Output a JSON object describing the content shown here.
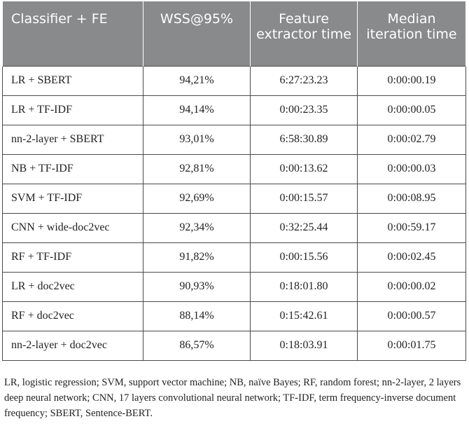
{
  "table": {
    "headers": [
      "Classifier + FE",
      "WSS@95%",
      "Feature extractor time",
      "Median iteration time"
    ],
    "rows": [
      [
        "LR + SBERT",
        "94,21%",
        "6:27:23.23",
        "0:00:00.19"
      ],
      [
        "LR + TF-IDF",
        "94,14%",
        "0:00:23.35",
        "0:00:00.05"
      ],
      [
        "nn-2-layer + SBERT",
        "93,01%",
        "6:58:30.89",
        "0:00:02.79"
      ],
      [
        "NB + TF-IDF",
        "92,81%",
        "0:00:13.62",
        "0:00:00.03"
      ],
      [
        "SVM + TF-IDF",
        "92,69%",
        "0:00:15.57",
        "0:00:08.95"
      ],
      [
        "CNN + wide-doc2vec",
        "92,34%",
        "0:32:25.44",
        "0:00:59.17"
      ],
      [
        "RF + TF-IDF",
        "91,82%",
        "0:00:15.56",
        "0:00:02.45"
      ],
      [
        "LR + doc2vec",
        "90,93%",
        "0:18:01.80",
        "0:00:00.02"
      ],
      [
        "RF + doc2vec",
        "88,14%",
        "0:15:42.61",
        "0:00:00.57"
      ],
      [
        "nn-2-layer + doc2vec",
        "86,57%",
        "0:18:03.91",
        "0:00:01.75"
      ]
    ]
  },
  "footnote": "LR, logistic regression; SVM, support vector machine; NB, naïve Bayes; RF, random forest; nn-2-layer, 2 layers deep neural network; CNN, 17 layers convolutional neural network; TF-IDF, term frequency-inverse document frequency; SBERT, Sentence-BERT."
}
